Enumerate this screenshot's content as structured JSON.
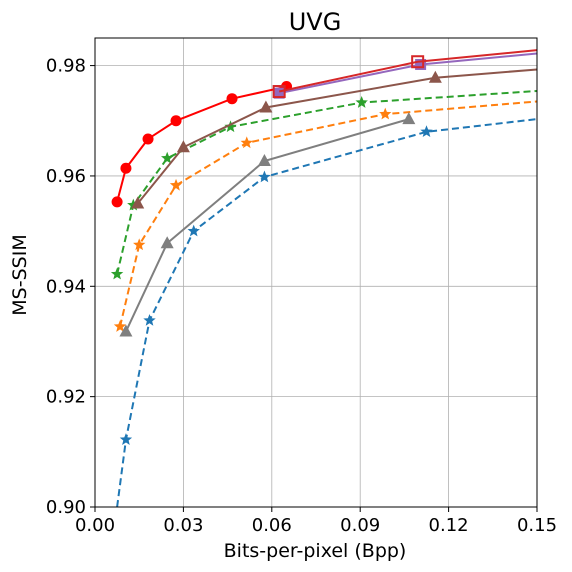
{
  "chart_data": {
    "type": "line",
    "title": "UVG",
    "xlabel": "Bits-per-pixel (Bpp)",
    "ylabel": "MS-SSIM",
    "xlim": [
      0,
      0.15
    ],
    "ylim": [
      0.9,
      0.985
    ],
    "xticks": [
      "0.00",
      "0.03",
      "0.06",
      "0.09",
      "0.12",
      "0.15"
    ],
    "yticks": [
      "0.90",
      "0.92",
      "0.94",
      "0.96",
      "0.98"
    ],
    "xtick_values": [
      0,
      0.03,
      0.06,
      0.09,
      0.12,
      0.15
    ],
    "ytick_values": [
      0.9,
      0.92,
      0.94,
      0.96,
      0.98
    ],
    "grid": true,
    "legend": "none",
    "series": [
      {
        "color": "#1f77b4",
        "dash": "dashed",
        "marker": "star",
        "points": [
          [
            0.0075,
            0.9
          ],
          [
            0.0105,
            0.9122
          ],
          [
            0.0185,
            0.9338
          ],
          [
            0.0335,
            0.95
          ],
          [
            0.0575,
            0.9598
          ],
          [
            0.1125,
            0.968
          ],
          [
            0.15,
            0.9703
          ]
        ]
      },
      {
        "color": "#ff7f0e",
        "dash": "dashed",
        "marker": "star",
        "points": [
          [
            0.0085,
            0.9327
          ],
          [
            0.015,
            0.9475
          ],
          [
            0.0275,
            0.9583
          ],
          [
            0.0515,
            0.966
          ],
          [
            0.0985,
            0.9712
          ],
          [
            0.15,
            0.9735
          ]
        ]
      },
      {
        "color": "#2ca02c",
        "dash": "dashed",
        "marker": "star",
        "points": [
          [
            0.0075,
            0.9422
          ],
          [
            0.013,
            0.9547
          ],
          [
            0.0245,
            0.9632
          ],
          [
            0.046,
            0.9689
          ],
          [
            0.0905,
            0.9733
          ],
          [
            0.15,
            0.9754
          ]
        ]
      },
      {
        "color": "#7f7f7f",
        "dash": "solid",
        "marker": "triangle",
        "points": [
          [
            0.0105,
            0.9318
          ],
          [
            0.0245,
            0.9478
          ],
          [
            0.0575,
            0.9627
          ],
          [
            0.1065,
            0.9703
          ]
        ]
      },
      {
        "color": "#8c564b",
        "dash": "solid",
        "marker": "triangle",
        "points": [
          [
            0.0145,
            0.955
          ],
          [
            0.03,
            0.9652
          ],
          [
            0.058,
            0.9724
          ],
          [
            0.1155,
            0.9778
          ],
          [
            0.15,
            0.9793
          ]
        ]
      },
      {
        "color": "#ff0000",
        "dash": "solid",
        "marker": "circle",
        "points": [
          [
            0.0075,
            0.9553
          ],
          [
            0.0105,
            0.9614
          ],
          [
            0.018,
            0.9667
          ],
          [
            0.0275,
            0.97
          ],
          [
            0.0465,
            0.974
          ],
          [
            0.065,
            0.9762
          ]
        ]
      },
      {
        "color": "#9467bd",
        "dash": "solid",
        "marker": "square",
        "points": [
          [
            0.0625,
            0.975
          ],
          [
            0.1105,
            0.9802
          ],
          [
            0.15,
            0.9822
          ]
        ]
      },
      {
        "color": "#d62728",
        "dash": "solid",
        "marker": "square-open",
        "points": [
          [
            0.0625,
            0.9753
          ],
          [
            0.1095,
            0.9807
          ],
          [
            0.15,
            0.9828
          ]
        ]
      }
    ]
  }
}
